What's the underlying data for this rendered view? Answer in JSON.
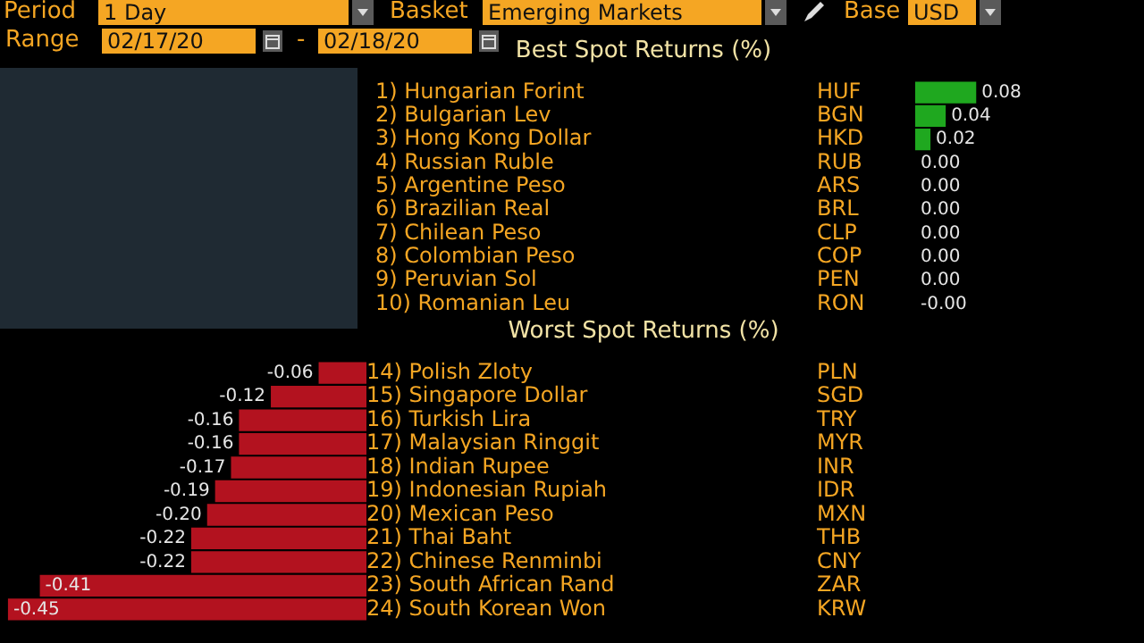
{
  "chart_data": [
    {
      "type": "bar",
      "orientation": "horizontal",
      "title": "Best Spot Returns (%)",
      "categories": [
        "1) Hungarian Forint",
        "2) Bulgarian Lev",
        "3) Hong Kong Dollar",
        "4) Russian Ruble",
        "5) Argentine Peso",
        "6) Brazilian Real",
        "7) Chilean Peso",
        "8) Colombian Peso",
        "9) Peruvian Sol",
        "10) Romanian Leu"
      ],
      "values": [
        0.08,
        0.04,
        0.02,
        0,
        0,
        0,
        0,
        0,
        0,
        0
      ],
      "value_labels": [
        "0.08",
        "0.04",
        "0.02",
        "0.00",
        "0.00",
        "0.00",
        "0.00",
        "0.00",
        "0.00",
        "-0.00"
      ],
      "color": "#1fa81f",
      "xlim": [
        0,
        0.3
      ],
      "tick_labels": "y",
      "legend": false,
      "annotations": [
        "Period",
        "1 Day",
        "Basket",
        "Emerging Markets",
        "Base",
        "USD",
        "Range",
        "02/17/20",
        "-",
        "02/18/20",
        "HUF",
        "BGN",
        "HKD",
        "RUB",
        "ARS",
        "BRL",
        "CLP",
        "COP",
        "PEN",
        "RON"
      ]
    },
    {
      "type": "bar",
      "orientation": "horizontal",
      "title": "Worst Spot Returns (%)",
      "categories": [
        "14) Polish Zloty",
        "15) Singapore Dollar",
        "16) Turkish Lira",
        "17) Malaysian Ringgit",
        "18) Indian Rupee",
        "19) Indonesian Rupiah",
        "20) Mexican Peso",
        "21) Thai Baht",
        "22) Chinese Renminbi",
        "23) South African Rand",
        "24) South Korean Won"
      ],
      "values": [
        -0.06,
        -0.12,
        -0.16,
        -0.16,
        -0.17,
        -0.19,
        -0.2,
        -0.22,
        -0.22,
        -0.41,
        -0.45
      ],
      "value_labels": [
        "-0.06",
        "-0.12",
        "-0.16",
        "-0.16",
        "-0.17",
        "-0.19",
        "-0.20",
        "-0.22",
        "-0.22",
        "-0.41",
        "-0.45"
      ],
      "color": "#b3121f",
      "xlim": [
        -0.46,
        0
      ],
      "tick_labels": "y",
      "legend": false,
      "annotations": [
        "PLN",
        "SGD",
        "TRY",
        "MYR",
        "INR",
        "IDR",
        "MXN",
        "THB",
        "CNY",
        "ZAR",
        "KRW"
      ]
    }
  ]
}
